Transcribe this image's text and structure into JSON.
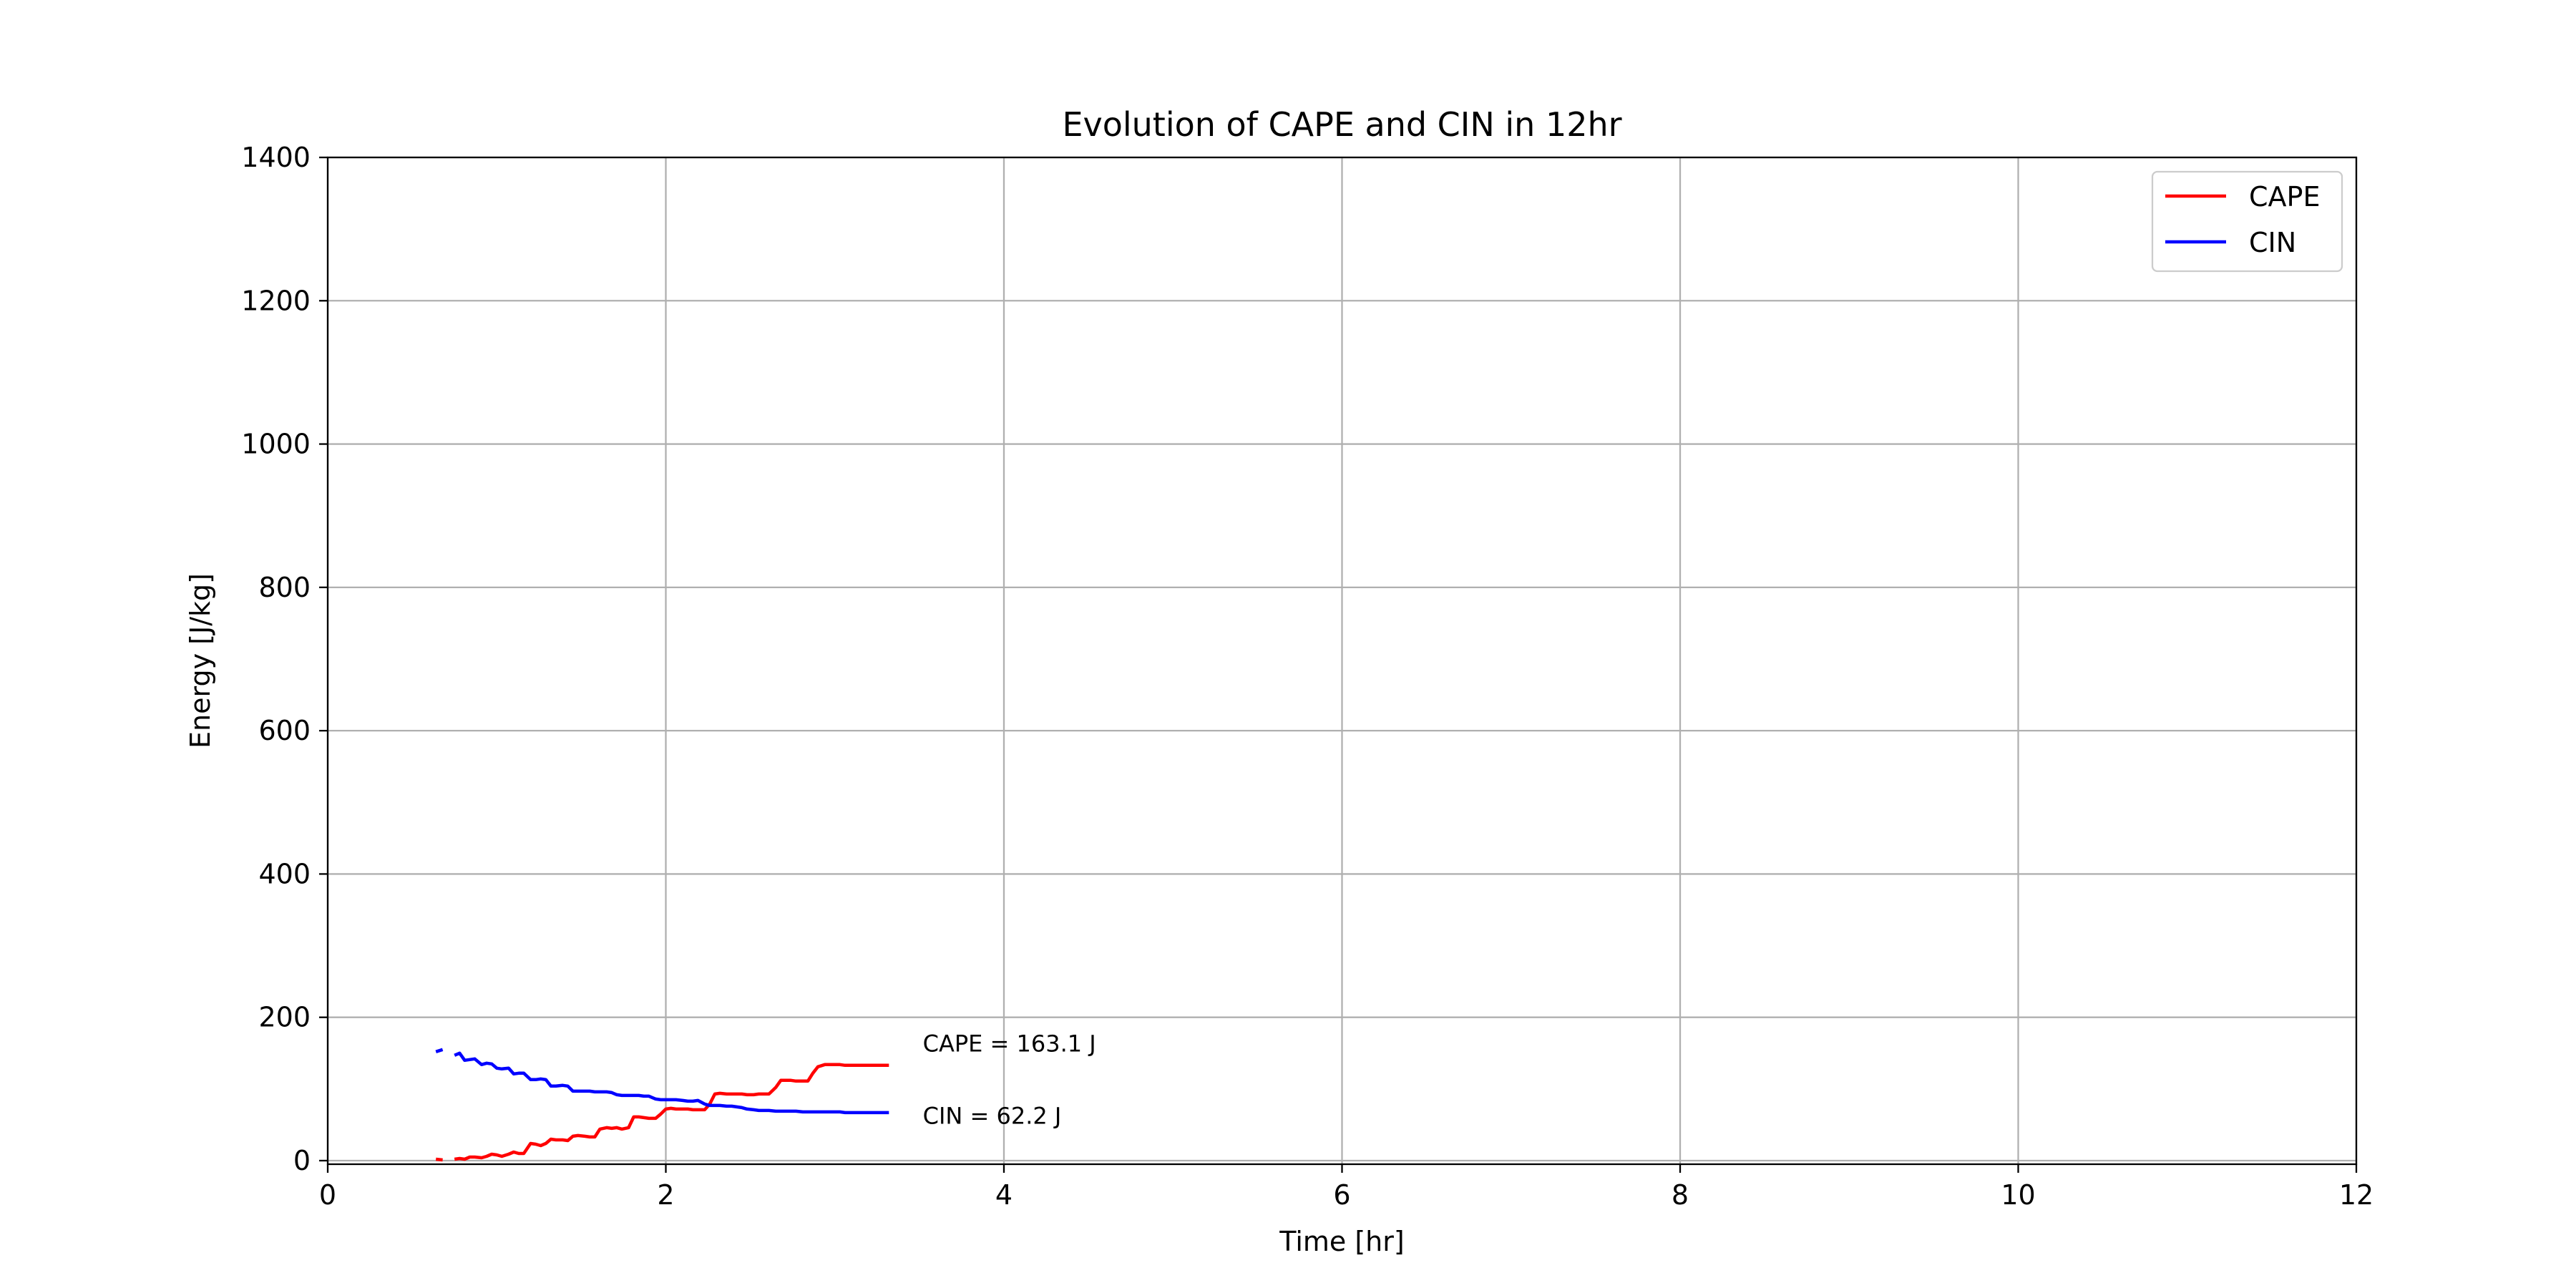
{
  "chart_data": {
    "type": "line",
    "title": "Evolution of CAPE and CIN in 12hr",
    "xlabel": "Time [hr]",
    "ylabel": "Energy [J/kg]",
    "xlim": [
      0,
      12
    ],
    "ylim": [
      -5,
      1400
    ],
    "xticks": [
      0,
      2,
      4,
      6,
      8,
      10,
      12
    ],
    "yticks": [
      0,
      200,
      400,
      600,
      800,
      1000,
      1200,
      1400
    ],
    "grid": true,
    "legend_position": "top-right",
    "series": [
      {
        "name": "CAPE",
        "color": "#ff0000",
        "segments": [
          {
            "x": [
              0.64,
              0.68
            ],
            "y": [
              2,
              1
            ]
          },
          {
            "x": [
              0.75,
              0.78,
              0.81,
              0.84,
              0.87,
              0.91,
              0.94,
              0.97,
              1.0,
              1.03,
              1.07,
              1.1,
              1.13,
              1.16,
              1.2,
              1.23,
              1.26,
              1.29,
              1.32,
              1.35,
              1.39,
              1.42,
              1.45,
              1.48,
              1.52,
              1.55,
              1.58,
              1.61,
              1.65,
              1.68,
              1.71,
              1.74,
              1.78,
              1.81,
              1.84,
              1.87,
              1.9,
              1.94,
              1.97,
              2.0,
              2.03,
              2.06,
              2.1,
              2.13,
              2.16,
              2.19,
              2.23,
              2.26,
              2.29,
              2.32,
              2.36,
              2.39,
              2.42,
              2.45,
              2.48,
              2.52,
              2.55,
              2.58,
              2.61,
              2.65,
              2.68,
              2.71,
              2.74,
              2.77,
              2.81,
              2.84,
              2.87,
              2.9,
              2.94,
              2.97,
              3.0,
              3.03,
              3.06,
              3.1,
              3.13,
              3.16,
              3.19,
              3.23,
              3.26,
              3.29,
              3.32
            ],
            "y": [
              2,
              3,
              2,
              5,
              5,
              4,
              6,
              9,
              8,
              6,
              9,
              12,
              10,
              10,
              24,
              23,
              21,
              24,
              30,
              29,
              29,
              28,
              34,
              35,
              34,
              33,
              33,
              44,
              46,
              45,
              46,
              44,
              46,
              61,
              61,
              60,
              59,
              59,
              65,
              72,
              73,
              72,
              72,
              72,
              71,
              71,
              71,
              79,
              93,
              94,
              93,
              93,
              93,
              93,
              92,
              92,
              93,
              93,
              93,
              102,
              112,
              112,
              112,
              111,
              111,
              111,
              122,
              131,
              134,
              134,
              134,
              134,
              133,
              133,
              133,
              133,
              133,
              133,
              133,
              133,
              133
            ]
          }
        ]
      },
      {
        "name": "CIN",
        "color": "#0000ff",
        "segments": [
          {
            "x": [
              0.64,
              0.68
            ],
            "y": [
              152,
              155
            ]
          },
          {
            "x": [
              0.75,
              0.78,
              0.81,
              0.84,
              0.87,
              0.91,
              0.94,
              0.97,
              1.0,
              1.03,
              1.07,
              1.1,
              1.13,
              1.16,
              1.2,
              1.23,
              1.26,
              1.29,
              1.32,
              1.35,
              1.39,
              1.42,
              1.45,
              1.48,
              1.52,
              1.55,
              1.58,
              1.61,
              1.65,
              1.68,
              1.71,
              1.74,
              1.78,
              1.81,
              1.84,
              1.87,
              1.9,
              1.94,
              1.97,
              2.0,
              2.03,
              2.06,
              2.1,
              2.13,
              2.16,
              2.19,
              2.23,
              2.26,
              2.29,
              2.32,
              2.36,
              2.39,
              2.42,
              2.45,
              2.48,
              2.52,
              2.55,
              2.58,
              2.61,
              2.65,
              2.68,
              2.71,
              2.74,
              2.77,
              2.81,
              2.84,
              2.87,
              2.9,
              2.94,
              2.97,
              3.0,
              3.03,
              3.06,
              3.1,
              3.13,
              3.16,
              3.19,
              3.23,
              3.26,
              3.29,
              3.32
            ],
            "y": [
              147,
              150,
              140,
              141,
              142,
              134,
              136,
              135,
              129,
              128,
              129,
              121,
              122,
              122,
              113,
              113,
              114,
              113,
              104,
              104,
              105,
              104,
              97,
              97,
              97,
              97,
              96,
              96,
              96,
              95,
              92,
              91,
              91,
              91,
              91,
              90,
              90,
              86,
              85,
              85,
              85,
              85,
              84,
              83,
              83,
              84,
              79,
              77,
              77,
              77,
              76,
              76,
              75,
              74,
              72,
              71,
              70,
              70,
              70,
              69,
              69,
              69,
              69,
              69,
              68,
              68,
              68,
              68,
              68,
              68,
              68,
              68,
              67,
              67,
              67,
              67,
              67,
              67,
              67,
              67,
              67
            ]
          }
        ]
      }
    ],
    "annotations": [
      {
        "text": "CAPE = 163.1 J",
        "x": 3.52,
        "y": 163.1
      },
      {
        "text": "CIN = 62.2 J",
        "x": 3.52,
        "y": 62.2
      }
    ]
  }
}
